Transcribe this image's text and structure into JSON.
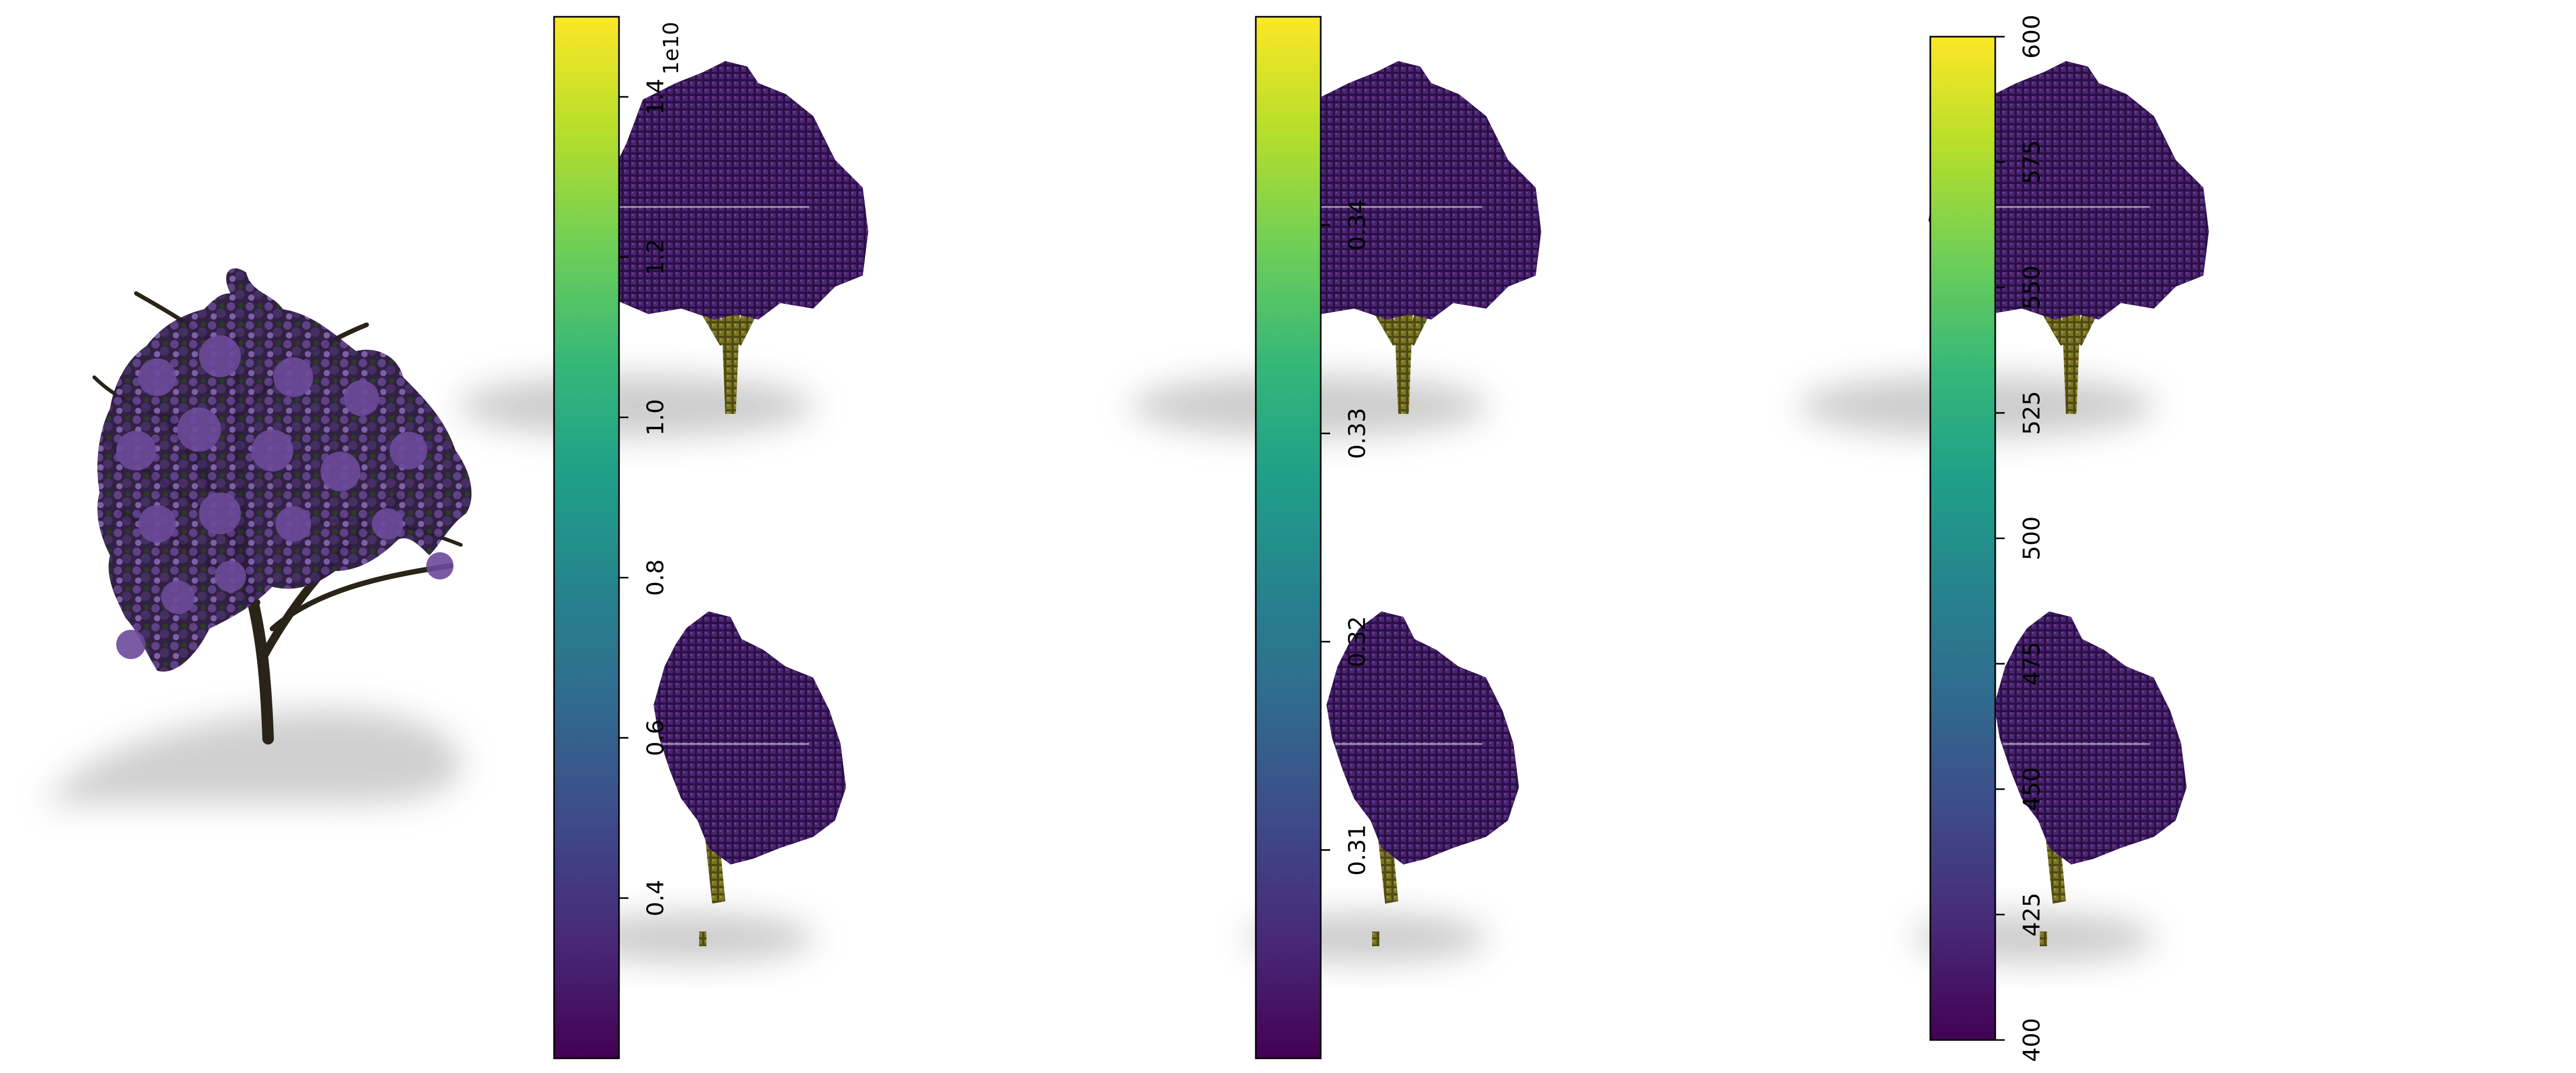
{
  "chart_data": [
    {
      "type": "heatmap",
      "colormap": "viridis",
      "colorbar": {
        "vmin": 0.2,
        "vmax": 1.5,
        "ticks": [
          0.4,
          0.6,
          0.8,
          1.0,
          1.2,
          1.4
        ],
        "tick_labels": [
          "0.4",
          "0.6",
          "0.8",
          "1.0",
          "1.2",
          "1.4"
        ],
        "offset_label": "1e10"
      }
    },
    {
      "type": "heatmap",
      "colormap": "viridis",
      "colorbar": {
        "vmin": 0.3,
        "vmax": 0.35,
        "ticks": [
          0.31,
          0.32,
          0.33,
          0.34
        ],
        "tick_labels": [
          "0.31",
          "0.32",
          "0.33",
          "0.34"
        ]
      }
    },
    {
      "type": "heatmap",
      "colormap": "viridis",
      "colorbar": {
        "vmin": 400,
        "vmax": 600,
        "ticks": [
          400,
          425,
          450,
          475,
          500,
          525,
          550,
          575,
          600
        ],
        "tick_labels": [
          "400",
          "425",
          "450",
          "475",
          "500",
          "525",
          "550",
          "575",
          "600"
        ]
      }
    }
  ],
  "colors": {
    "viridis_stops": [
      "#440154",
      "#482878",
      "#3e4989",
      "#31688e",
      "#26828e",
      "#1f9e89",
      "#35b779",
      "#6ece58",
      "#b5de2b",
      "#fde725"
    ],
    "foliage": "#3a1a5c",
    "trunk": "#6b6520",
    "shadow": "#c8c8c8"
  }
}
